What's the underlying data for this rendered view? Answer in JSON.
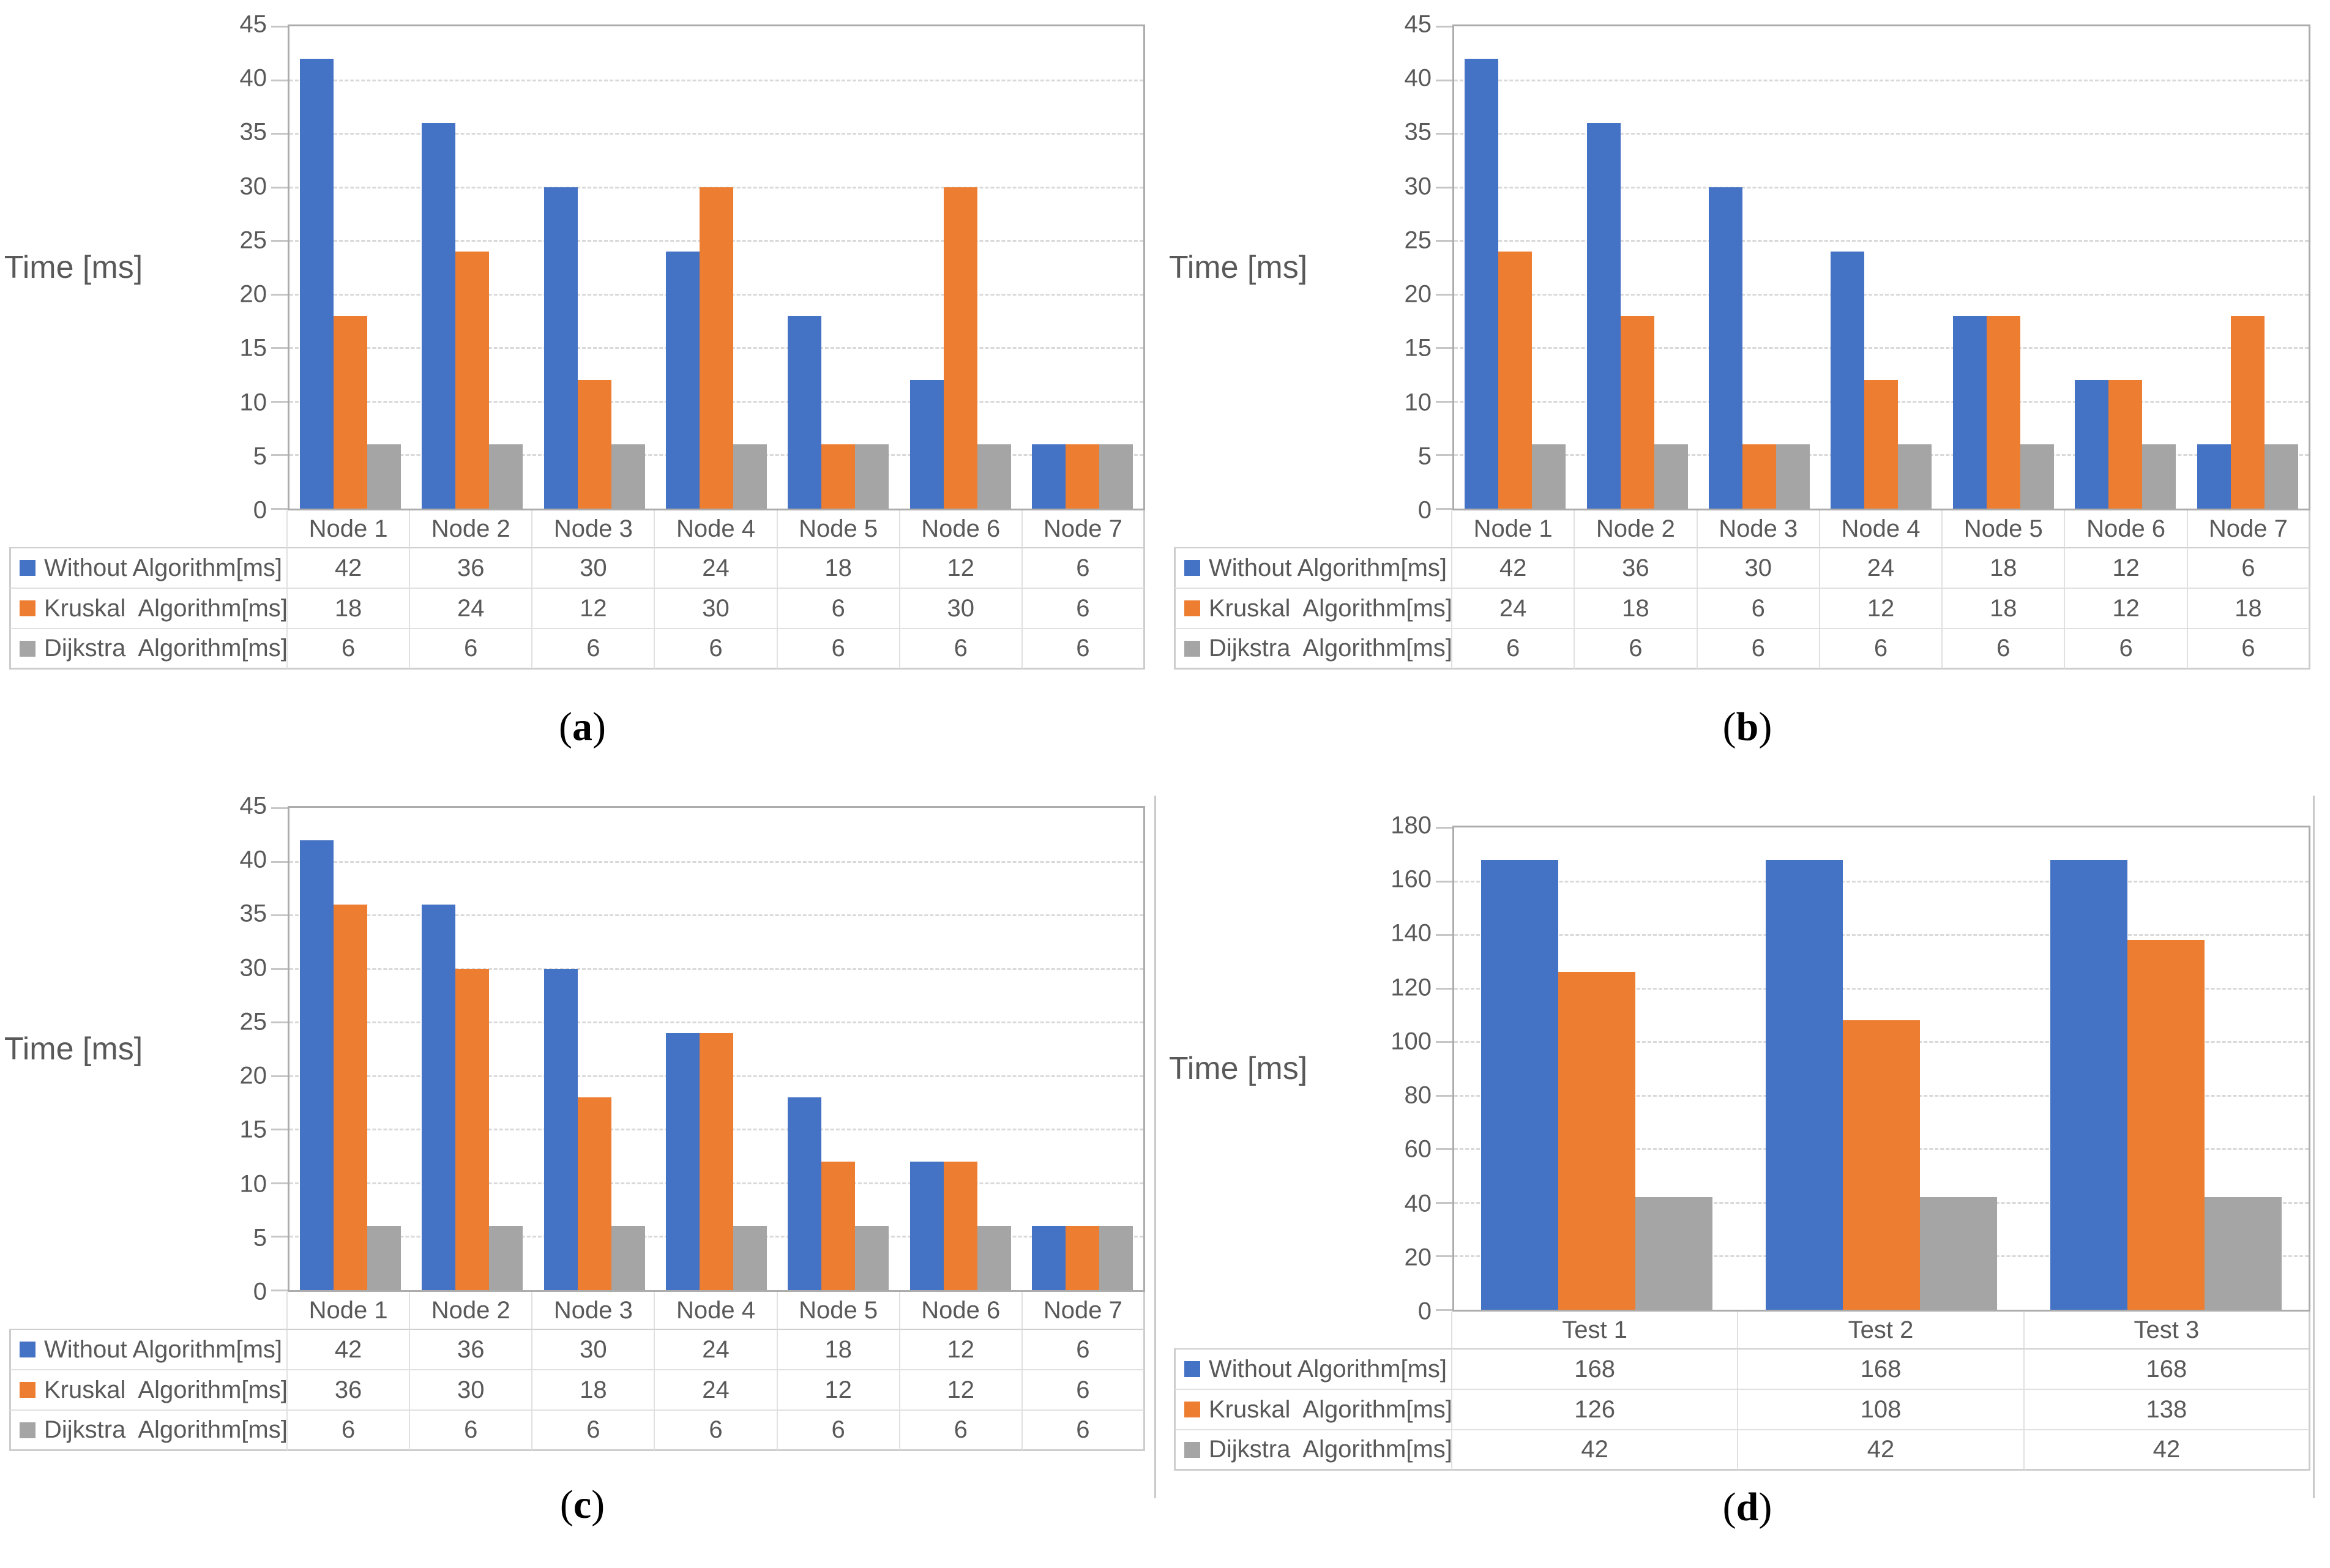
{
  "figure": {
    "y_axis_title": "Time [ms]",
    "accent_colors": {
      "blue": "#4472C4",
      "orange": "#ED7D31",
      "gray": "#A5A5A5"
    },
    "line_colors": {
      "plot_border": "#ACACAC",
      "gridline": "#D9D9D9",
      "table_border": "#CDCDCD",
      "text": "#595959"
    }
  },
  "chart_data": [
    {
      "id": "a",
      "type": "bar",
      "caption_parts": [
        "(",
        "a",
        ")"
      ],
      "ylabel": "Time [ms]",
      "categories": [
        "Node 1",
        "Node 2",
        "Node 3",
        "Node 4",
        "Node 5",
        "Node 6",
        "Node 7"
      ],
      "series": [
        {
          "name": "Without Algorithm[ms]",
          "color": "#4472C4",
          "values": [
            42,
            36,
            30,
            24,
            18,
            12,
            6
          ]
        },
        {
          "name": "Kruskal  Algorithm[ms]",
          "color": "#ED7D31",
          "values": [
            18,
            24,
            12,
            30,
            6,
            30,
            6
          ]
        },
        {
          "name": "Dijkstra  Algorithm[ms]",
          "color": "#A5A5A5",
          "values": [
            6,
            6,
            6,
            6,
            6,
            6,
            6
          ]
        }
      ],
      "ylim": [
        0,
        45
      ],
      "ytick_step": 5,
      "grid": "horizontal-dashed",
      "legend_position": "table-left"
    },
    {
      "id": "b",
      "type": "bar",
      "caption_parts": [
        "(",
        "b",
        ")"
      ],
      "ylabel": "Time [ms]",
      "categories": [
        "Node 1",
        "Node 2",
        "Node 3",
        "Node 4",
        "Node 5",
        "Node 6",
        "Node 7"
      ],
      "series": [
        {
          "name": "Without Algorithm[ms]",
          "color": "#4472C4",
          "values": [
            42,
            36,
            30,
            24,
            18,
            12,
            6
          ]
        },
        {
          "name": "Kruskal  Algorithm[ms]",
          "color": "#ED7D31",
          "values": [
            24,
            18,
            6,
            12,
            18,
            12,
            18
          ]
        },
        {
          "name": "Dijkstra  Algorithm[ms]",
          "color": "#A5A5A5",
          "values": [
            6,
            6,
            6,
            6,
            6,
            6,
            6
          ]
        }
      ],
      "ylim": [
        0,
        45
      ],
      "ytick_step": 5,
      "grid": "horizontal-dashed",
      "legend_position": "table-left"
    },
    {
      "id": "c",
      "type": "bar",
      "caption_parts": [
        "(",
        "c",
        ")"
      ],
      "ylabel": "Time [ms]",
      "categories": [
        "Node 1",
        "Node 2",
        "Node 3",
        "Node 4",
        "Node 5",
        "Node 6",
        "Node 7"
      ],
      "series": [
        {
          "name": "Without Algorithm[ms]",
          "color": "#4472C4",
          "values": [
            42,
            36,
            30,
            24,
            18,
            12,
            6
          ]
        },
        {
          "name": "Kruskal  Algorithm[ms]",
          "color": "#ED7D31",
          "values": [
            36,
            30,
            18,
            24,
            12,
            12,
            6
          ]
        },
        {
          "name": "Dijkstra  Algorithm[ms]",
          "color": "#A5A5A5",
          "values": [
            6,
            6,
            6,
            6,
            6,
            6,
            6
          ]
        }
      ],
      "ylim": [
        0,
        45
      ],
      "ytick_step": 5,
      "grid": "horizontal-dashed",
      "legend_position": "table-left"
    },
    {
      "id": "d",
      "type": "bar",
      "caption_parts": [
        "(",
        "d",
        ")"
      ],
      "ylabel": "Time [ms]",
      "categories": [
        "Test 1",
        "Test 2",
        "Test 3"
      ],
      "series": [
        {
          "name": "Without Algorithm[ms]",
          "color": "#4472C4",
          "values": [
            168,
            168,
            168
          ]
        },
        {
          "name": "Kruskal  Algorithm[ms]",
          "color": "#ED7D31",
          "values": [
            126,
            108,
            138
          ]
        },
        {
          "name": "Dijkstra  Algorithm[ms]",
          "color": "#A5A5A5",
          "values": [
            42,
            42,
            42
          ]
        }
      ],
      "ylim": [
        0,
        180
      ],
      "ytick_step": 20,
      "grid": "horizontal-dashed",
      "legend_position": "table-left"
    }
  ]
}
